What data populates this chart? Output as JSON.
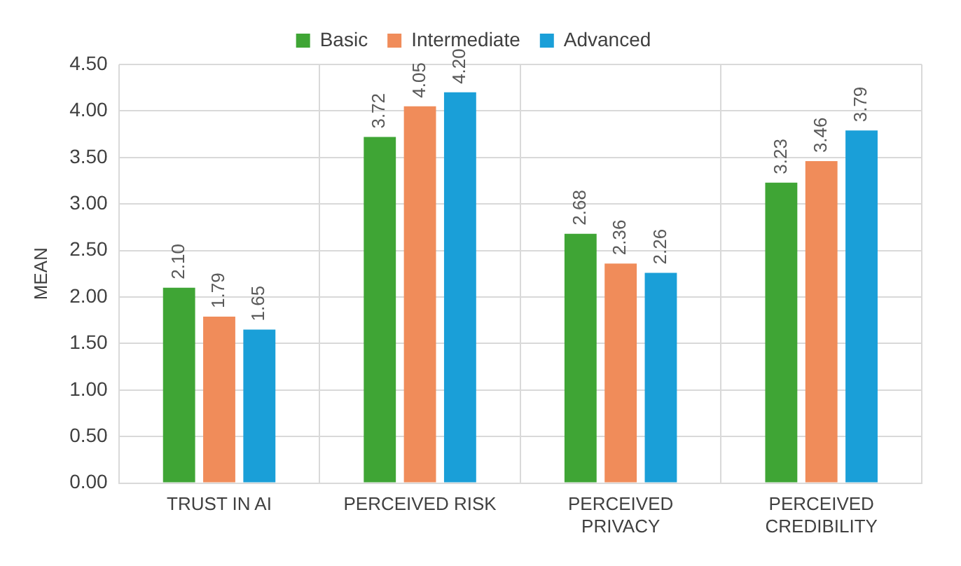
{
  "chart_data": {
    "type": "bar",
    "ylabel": "MEAN",
    "categories": [
      "TRUST IN AI",
      "PERCEIVED RISK",
      "PERCEIVED PRIVACY",
      "PERCEIVED CREDIBILITY"
    ],
    "series": [
      {
        "name": "Basic",
        "color": "#3fa535",
        "values": [
          2.1,
          3.72,
          2.68,
          3.23
        ]
      },
      {
        "name": "Intermediate",
        "color": "#f08c5a",
        "values": [
          1.79,
          4.05,
          2.36,
          3.46
        ]
      },
      {
        "name": "Advanced",
        "color": "#1a9fd8",
        "values": [
          1.65,
          4.2,
          2.26,
          3.79
        ]
      }
    ],
    "ylim": [
      0,
      4.5
    ],
    "yticks": [
      {
        "value": 0,
        "label": "0.00"
      },
      {
        "value": 0.5,
        "label": "0.50"
      },
      {
        "value": 1,
        "label": "1.00"
      },
      {
        "value": 1.5,
        "label": "1.50"
      },
      {
        "value": 2,
        "label": "2.00"
      },
      {
        "value": 2.5,
        "label": "2.50"
      },
      {
        "value": 3,
        "label": "3.00"
      },
      {
        "value": 3.5,
        "label": "3.50"
      },
      {
        "value": 4,
        "label": "4.00"
      },
      {
        "value": 4.5,
        "label": "4.50"
      }
    ],
    "value_labels": [
      [
        "2.10",
        "3.72",
        "2.68",
        "3.23"
      ],
      [
        "1.79",
        "4.05",
        "2.36",
        "3.46"
      ],
      [
        "1.65",
        "4.20",
        "2.26",
        "3.79"
      ]
    ],
    "grid": true,
    "legend": "top"
  }
}
